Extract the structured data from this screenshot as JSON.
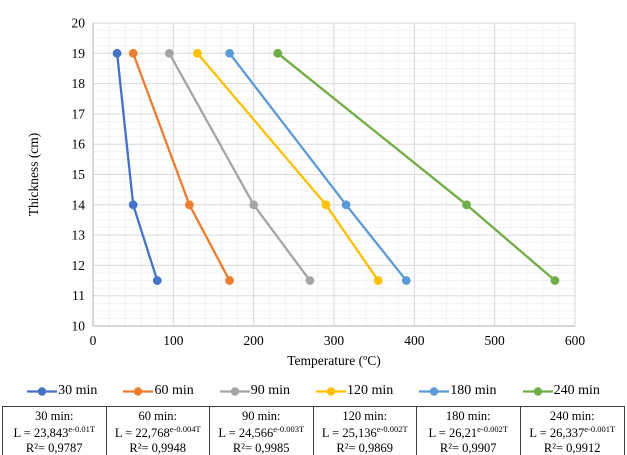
{
  "chart_data": {
    "type": "line",
    "title": "",
    "xlabel": "Temperature (ºC)",
    "ylabel": "Thickness (cm)",
    "xlim": [
      0,
      600
    ],
    "ylim": [
      10,
      20
    ],
    "x_major": 100,
    "x_minor": 20,
    "y_major": 1,
    "y_minor": 0.25,
    "x_ticks": [
      0,
      100,
      200,
      300,
      400,
      500,
      600
    ],
    "y_ticks": [
      10,
      11,
      12,
      13,
      14,
      15,
      16,
      17,
      18,
      19,
      20
    ],
    "grid": "major+minor",
    "legend_position": "bottom",
    "series": [
      {
        "name": "30 min",
        "color": "#4472C4",
        "points": [
          [
            30,
            19
          ],
          [
            50,
            14
          ],
          [
            80,
            11.5
          ]
        ]
      },
      {
        "name": "60 min",
        "color": "#ED7D31",
        "points": [
          [
            50,
            19
          ],
          [
            120,
            14
          ],
          [
            170,
            11.5
          ]
        ]
      },
      {
        "name": "90 min",
        "color": "#A5A5A5",
        "points": [
          [
            95,
            19
          ],
          [
            200,
            14
          ],
          [
            270,
            11.5
          ]
        ]
      },
      {
        "name": "120 min",
        "color": "#FFC000",
        "points": [
          [
            130,
            19
          ],
          [
            290,
            14
          ],
          [
            355,
            11.5
          ]
        ]
      },
      {
        "name": "180 min",
        "color": "#5B9BD5",
        "points": [
          [
            170,
            19
          ],
          [
            315,
            14
          ],
          [
            390,
            11.5
          ]
        ]
      },
      {
        "name": "240 min",
        "color": "#70AD47",
        "points": [
          [
            230,
            19
          ],
          [
            465,
            14
          ],
          [
            575,
            11.5
          ]
        ]
      }
    ]
  },
  "equation_table": {
    "cells": [
      {
        "title": "30 min:",
        "eq_base": "L = 23,843",
        "eq_sup": "e-0.01T",
        "r2": "R²= 0,9787"
      },
      {
        "title": "60 min:",
        "eq_base": "L = 22,768",
        "eq_sup": "e-0.004T",
        "r2": "R²= 0,9948"
      },
      {
        "title": "90 min:",
        "eq_base": "L = 24,566",
        "eq_sup": "e-0.003T",
        "r2": "R²= 0,9985"
      },
      {
        "title": "120 min:",
        "eq_base": "L = 25,136",
        "eq_sup": "e-0.002T",
        "r2": "R²= 0,9869"
      },
      {
        "title": "180 min:",
        "eq_base": "L = 26,21",
        "eq_sup": "e-0.002T",
        "r2": "R²= 0,9907"
      },
      {
        "title": "240 min:",
        "eq_base": "L = 26,337",
        "eq_sup": "e-0.001T",
        "r2": "R²= 0,9912"
      }
    ]
  },
  "colors": {
    "grid_major": "#D9D9D9",
    "grid_minor": "#F2F2F2",
    "axis_line": "#BFBFBF",
    "text": "#000000"
  }
}
